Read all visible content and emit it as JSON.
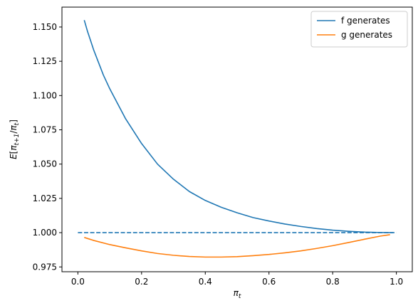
{
  "chart_data": {
    "type": "line",
    "xlabel": "π_t",
    "ylabel": "E[π_{t+1}/π_t]",
    "xlim": [
      -0.05,
      1.05
    ],
    "ylim": [
      0.9715,
      1.1645
    ],
    "x_ticks": [
      0.0,
      0.2,
      0.4,
      0.6,
      0.8,
      1.0
    ],
    "x_tick_labels": [
      "0.0",
      "0.2",
      "0.4",
      "0.6",
      "0.8",
      "1.0"
    ],
    "y_ticks": [
      0.975,
      1.0,
      1.025,
      1.05,
      1.075,
      1.1,
      1.125,
      1.15
    ],
    "y_tick_labels": [
      "0.975",
      "1.000",
      "1.025",
      "1.050",
      "1.075",
      "1.100",
      "1.125",
      "1.150"
    ],
    "grid": false,
    "legend_position": "top-right",
    "series": [
      {
        "name": "f generates",
        "color": "#1f77b4",
        "style": "solid",
        "x": [
          0.02,
          0.03,
          0.05,
          0.08,
          0.1,
          0.15,
          0.2,
          0.25,
          0.3,
          0.35,
          0.4,
          0.45,
          0.5,
          0.55,
          0.6,
          0.65,
          0.7,
          0.75,
          0.8,
          0.85,
          0.9,
          0.95,
          0.99
        ],
        "y": [
          1.155,
          1.147,
          1.133,
          1.115,
          1.105,
          1.083,
          1.065,
          1.05,
          1.039,
          1.03,
          1.0235,
          1.0185,
          1.0145,
          1.011,
          1.0085,
          1.0063,
          1.0045,
          1.003,
          1.0018,
          1.001,
          1.0004,
          1.0001,
          1.0
        ]
      },
      {
        "name": "g generates",
        "color": "#ff7f0e",
        "style": "solid",
        "x": [
          0.02,
          0.05,
          0.1,
          0.15,
          0.2,
          0.25,
          0.3,
          0.35,
          0.4,
          0.45,
          0.5,
          0.55,
          0.6,
          0.65,
          0.7,
          0.75,
          0.8,
          0.85,
          0.9,
          0.95,
          0.98
        ],
        "y": [
          0.9965,
          0.9943,
          0.9913,
          0.9889,
          0.9867,
          0.9848,
          0.9835,
          0.9826,
          0.9822,
          0.9822,
          0.9825,
          0.9832,
          0.9841,
          0.9853,
          0.9867,
          0.9885,
          0.9905,
          0.9928,
          0.9952,
          0.9975,
          0.9985
        ]
      },
      {
        "name": "",
        "color": "#1f77b4",
        "style": "dashed",
        "x": [
          0.0,
          1.0
        ],
        "y": [
          1.0,
          1.0
        ]
      }
    ]
  }
}
